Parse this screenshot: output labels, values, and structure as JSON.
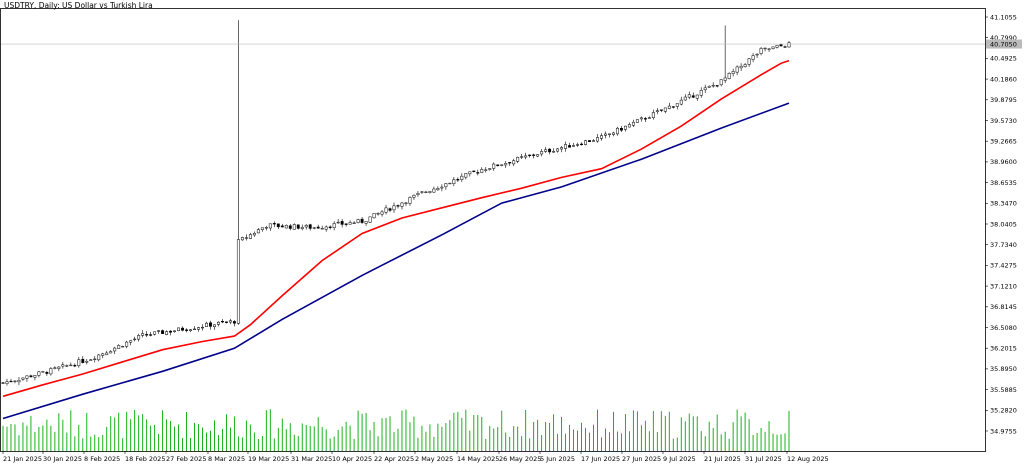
{
  "chart_data": {
    "type": "candlestick",
    "title": "USDTRY, Daily:  US Dollar vs Turkish Lira",
    "current_price": "40.7050",
    "y_ticks": [
      "41.1055",
      "40.7990",
      "40.4925",
      "40.1860",
      "39.8795",
      "39.5730",
      "39.2665",
      "38.9600",
      "38.6535",
      "38.3470",
      "38.0405",
      "37.7340",
      "37.4275",
      "37.1210",
      "36.8145",
      "36.5080",
      "36.2015",
      "35.8950",
      "35.5885",
      "35.2820",
      "34.9755"
    ],
    "y_min": 34.9755,
    "y_max": 41.1055,
    "x_ticks": [
      "21 Jan 2025",
      "30 Jan 2025",
      "8 Feb 2025",
      "18 Feb 2025",
      "27 Feb 2025",
      "8 Mar 2025",
      "19 Mar 2025",
      "31 Mar 2025",
      "10 Apr 2025",
      "22 Apr 2025",
      "2 May 2025",
      "14 May 2025",
      "26 May 2025",
      "5 Jun 2025",
      "17 Jun 2025",
      "27 Jun 2025",
      "9 Jul 2025",
      "21 Jul 2025",
      "31 Jul 2025",
      "12 Aug 2025"
    ],
    "moving_averages": [
      {
        "color": "#ff0000",
        "points": [
          [
            0,
            35.49
          ],
          [
            10,
            35.66
          ],
          [
            20,
            35.82
          ],
          [
            30,
            36.0
          ],
          [
            40,
            36.18
          ],
          [
            50,
            36.3
          ],
          [
            58,
            36.38
          ],
          [
            62,
            36.55
          ],
          [
            70,
            36.98
          ],
          [
            80,
            37.5
          ],
          [
            90,
            37.9
          ],
          [
            100,
            38.13
          ],
          [
            110,
            38.28
          ],
          [
            120,
            38.43
          ],
          [
            130,
            38.57
          ],
          [
            140,
            38.73
          ],
          [
            150,
            38.86
          ],
          [
            160,
            39.15
          ],
          [
            170,
            39.49
          ],
          [
            180,
            39.89
          ],
          [
            190,
            40.25
          ],
          [
            195,
            40.42
          ],
          [
            197,
            40.46
          ]
        ]
      },
      {
        "color": "#00008b",
        "points": [
          [
            0,
            35.16
          ],
          [
            20,
            35.52
          ],
          [
            40,
            35.86
          ],
          [
            58,
            36.2
          ],
          [
            70,
            36.63
          ],
          [
            90,
            37.28
          ],
          [
            110,
            37.88
          ],
          [
            125,
            38.35
          ],
          [
            140,
            38.59
          ],
          [
            160,
            39.0
          ],
          [
            180,
            39.46
          ],
          [
            197,
            39.83
          ]
        ]
      }
    ],
    "volume_color": "#00aa00",
    "current_price_color": "#bbbbbb"
  }
}
